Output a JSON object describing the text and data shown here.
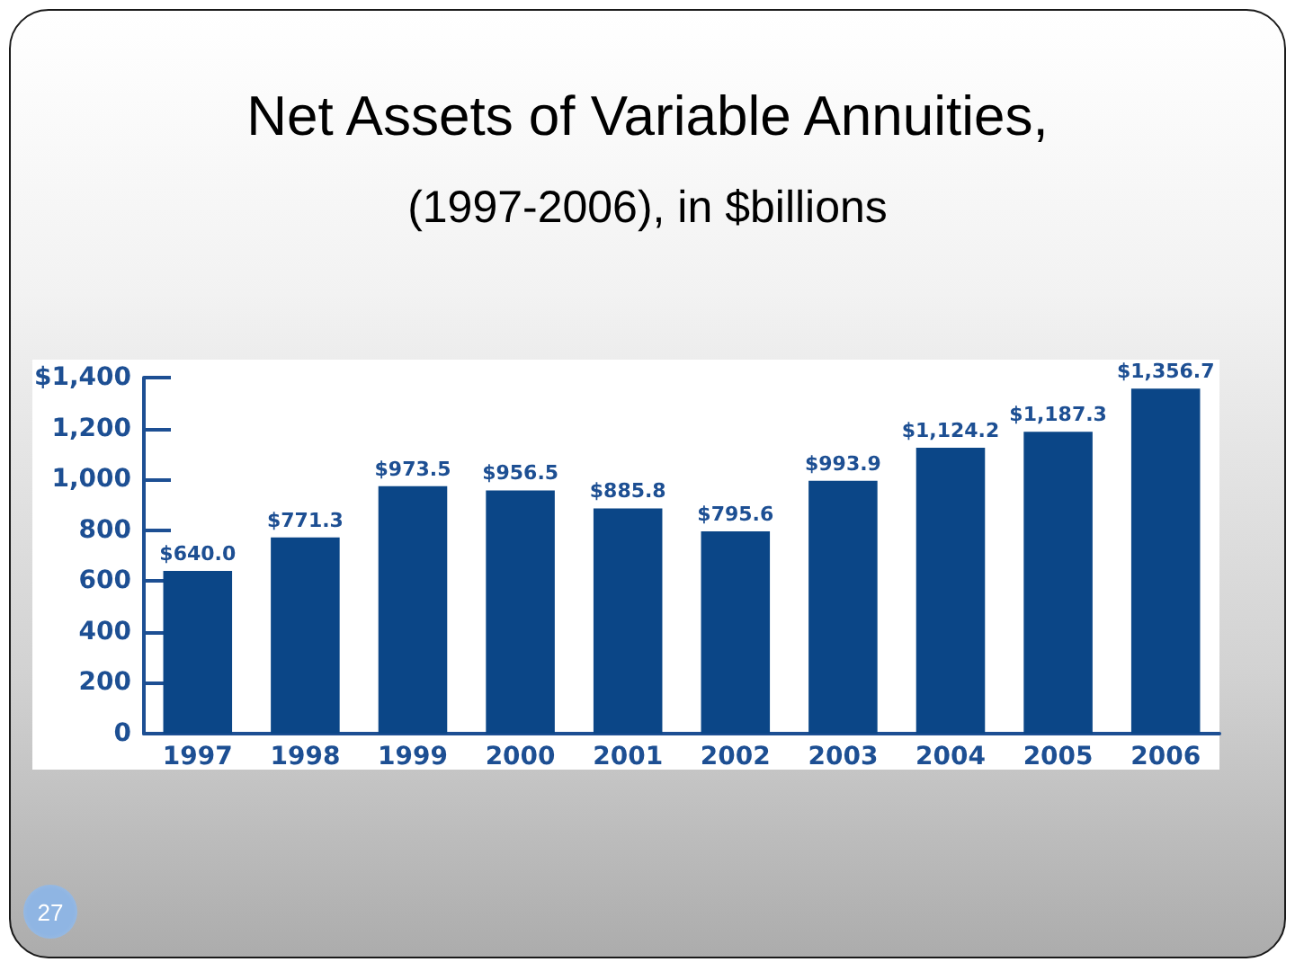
{
  "chart_data": {
    "type": "bar",
    "title": "Net Assets of Variable Annuities,",
    "subtitle": "(1997-2006), in $billions",
    "categories": [
      "1997",
      "1998",
      "1999",
      "2000",
      "2001",
      "2002",
      "2003",
      "2004",
      "2005",
      "2006"
    ],
    "values": [
      640.0,
      771.3,
      973.5,
      956.5,
      885.8,
      795.6,
      993.9,
      1124.2,
      1187.3,
      1356.7
    ],
    "value_labels": [
      "$640.0",
      "$771.3",
      "$973.5",
      "$956.5",
      "$885.8",
      "$795.6",
      "$993.9",
      "$1,124.2",
      "$1,187.3",
      "$1,356.7"
    ],
    "color": "#0b4687",
    "ylim": [
      0,
      1400
    ],
    "yticks": [
      0,
      200,
      400,
      600,
      800,
      {
        "value": 1000,
        "label": "1,000"
      },
      {
        "value": 1200,
        "label": "1,200"
      },
      {
        "value": 1400,
        "label": "$1,400"
      }
    ],
    "annotations": [
      "27"
    ]
  }
}
